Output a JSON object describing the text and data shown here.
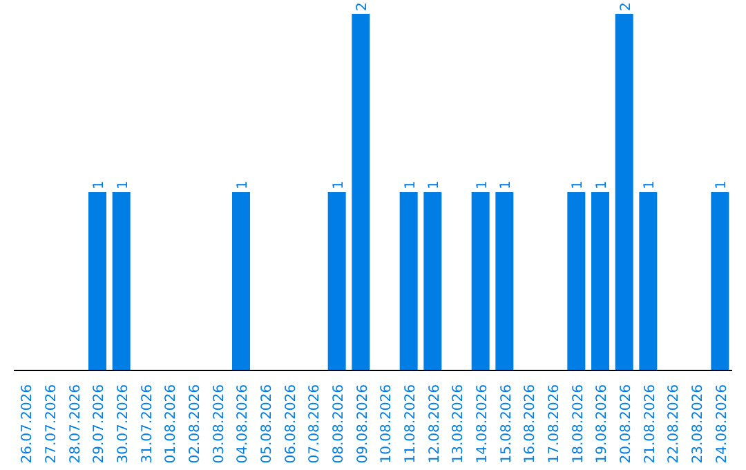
{
  "chart_data": {
    "type": "bar",
    "categories": [
      "26.07.2026",
      "27.07.2026",
      "28.07.2026",
      "29.07.2026",
      "30.07.2026",
      "31.07.2026",
      "01.08.2026",
      "02.08.2026",
      "03.08.2026",
      "04.08.2026",
      "05.08.2026",
      "06.08.2026",
      "07.08.2026",
      "08.08.2026",
      "09.08.2026",
      "10.08.2026",
      "11.08.2026",
      "12.08.2026",
      "13.08.2026",
      "14.08.2026",
      "15.08.2026",
      "16.08.2026",
      "17.08.2026",
      "18.08.2026",
      "19.08.2026",
      "20.08.2026",
      "21.08.2026",
      "22.08.2026",
      "23.08.2026",
      "24.08.2026"
    ],
    "values": [
      0,
      0,
      0,
      1,
      1,
      0,
      0,
      0,
      0,
      1,
      0,
      0,
      0,
      1,
      2,
      0,
      1,
      1,
      0,
      1,
      1,
      0,
      0,
      1,
      1,
      2,
      1,
      0,
      0,
      1
    ],
    "value_labels": [
      null,
      null,
      null,
      "1",
      "1",
      null,
      null,
      null,
      null,
      "1",
      null,
      null,
      null,
      "1",
      "2",
      null,
      "1",
      "1",
      null,
      "1",
      "1",
      null,
      null,
      "1",
      "1",
      "2",
      "1",
      null,
      null,
      "1"
    ],
    "color": "#007ee5"
  }
}
